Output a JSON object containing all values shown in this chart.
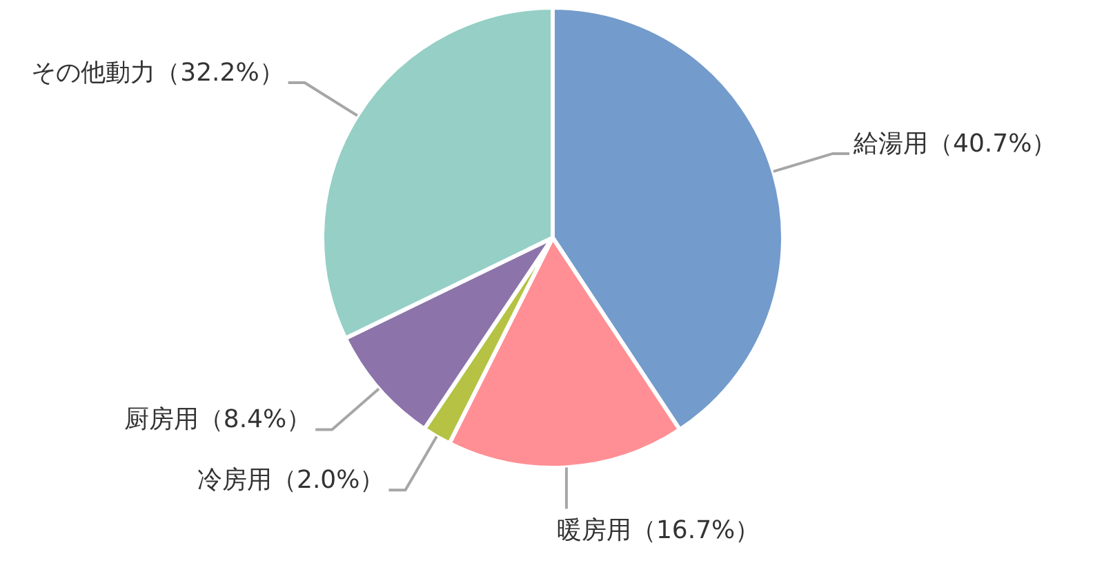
{
  "chart_data": {
    "type": "pie",
    "categories": [
      "給湯用",
      "暖房用",
      "冷房用",
      "厨房用",
      "その他動力"
    ],
    "values": [
      40.7,
      16.7,
      2.0,
      8.4,
      32.2
    ],
    "colors": [
      "#739bcc",
      "#ff8f94",
      "#b5c244",
      "#8c74aa",
      "#95cfc5"
    ],
    "value_labels": [
      "（40.7%）",
      "（16.7%）",
      "（2.0%）",
      "（8.4%）",
      "（32.2%）"
    ]
  }
}
